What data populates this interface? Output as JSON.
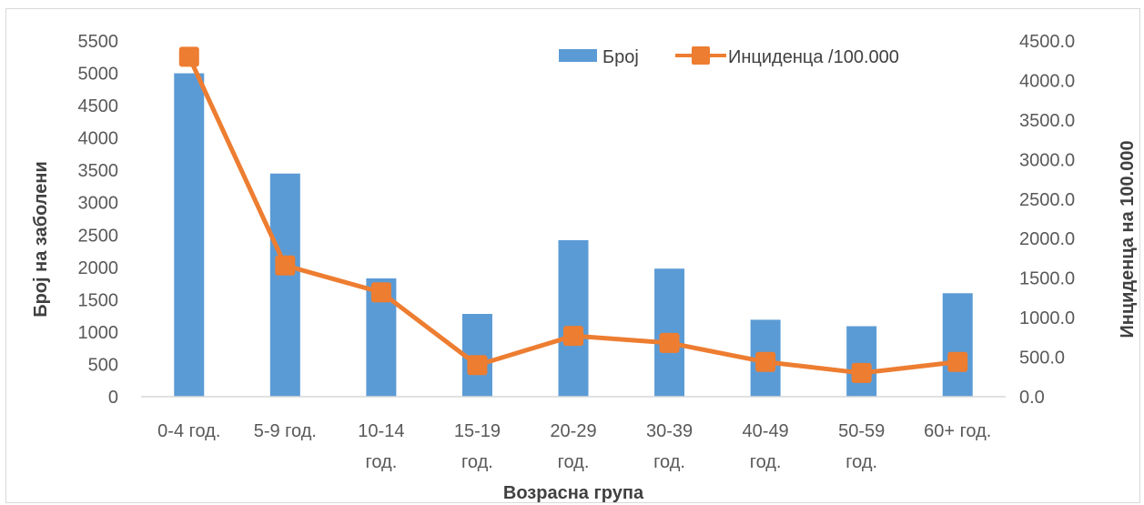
{
  "chart_data": {
    "type": "bar",
    "categories": [
      [
        "0-4 год."
      ],
      [
        "5-9 год."
      ],
      [
        "10-14",
        "год."
      ],
      [
        "15-19",
        "год."
      ],
      [
        "20-29",
        "год."
      ],
      [
        "30-39",
        "год."
      ],
      [
        "40-49",
        "год."
      ],
      [
        "50-59",
        "год."
      ],
      [
        "60+ год."
      ]
    ],
    "series": [
      {
        "name": "Број",
        "type": "bar",
        "axis": "left",
        "color": "#5b9bd5",
        "values": [
          5000,
          3450,
          1830,
          1280,
          2420,
          1980,
          1190,
          1090,
          1600
        ]
      },
      {
        "name": "Инциденца /100.000",
        "type": "line",
        "axis": "right",
        "color": "#ed7d31",
        "values": [
          4300,
          1660,
          1320,
          400,
          770,
          680,
          440,
          300,
          440
        ]
      }
    ],
    "xlabel": "Возрасна група",
    "ylabel": "Број на заболени",
    "y2label": "Инциденца на 100.000",
    "ylim": [
      0,
      5500
    ],
    "y2lim": [
      0,
      4500
    ],
    "yticks": [
      "0",
      "500",
      "1000",
      "1500",
      "2000",
      "2500",
      "3000",
      "3500",
      "4000",
      "4500",
      "5000",
      "5500"
    ],
    "y2ticks": [
      "0.0",
      "500.0",
      "1000.0",
      "1500.0",
      "2000.0",
      "2500.0",
      "3000.0",
      "3500.0",
      "4000.0",
      "4500.0"
    ],
    "grid": false,
    "legend_position": "top-right"
  }
}
